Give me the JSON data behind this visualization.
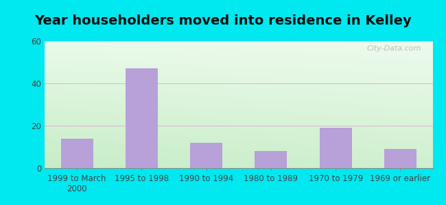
{
  "title": "Year householders moved into residence in Kelley",
  "categories": [
    "1999 to March\n2000",
    "1995 to 1998",
    "1990 to 1994",
    "1980 to 1989",
    "1970 to 1979",
    "1969 or earlier"
  ],
  "values": [
    14,
    47,
    12,
    8,
    19,
    9
  ],
  "bar_color": "#b8a0d8",
  "ylim": [
    0,
    60
  ],
  "yticks": [
    0,
    20,
    40,
    60
  ],
  "background_outer": "#00e8f0",
  "background_inner_topleft": "#c8eec8",
  "background_inner_topright": "#e8f8f8",
  "background_inner_bottom": "#c8eec0",
  "title_fontsize": 14,
  "tick_fontsize": 8.5,
  "watermark": "City-Data.com"
}
